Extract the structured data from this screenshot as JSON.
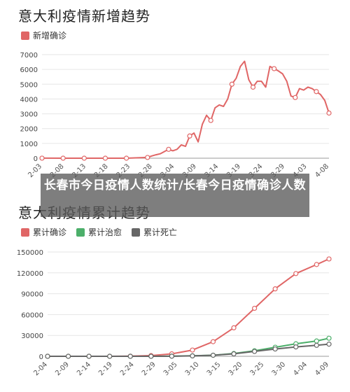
{
  "overlay": {
    "headline": "长春市今日疫情人数统计/长春今日疫情确诊人数"
  },
  "colors": {
    "confirmed": "#e06666",
    "recovered": "#4caf6a",
    "deaths": "#666666",
    "grid": "#e6e6e6"
  },
  "chart_data": [
    {
      "type": "line",
      "title": "意大利疫情新增趋势",
      "legend_position": "top-left",
      "grid": true,
      "ylim": [
        0,
        7000
      ],
      "yticks": [
        0,
        1000,
        2000,
        3000,
        4000,
        5000,
        6000,
        7000
      ],
      "xticks": [
        "2-03",
        "2-08",
        "2-13",
        "2-18",
        "2-23",
        "2-28",
        "3-04",
        "3-09",
        "3-14",
        "3-19",
        "3-24",
        "3-29",
        "4-03",
        "4-08"
      ],
      "series": [
        {
          "name": "新增确诊",
          "color": "#e06666",
          "x": [
            0,
            5,
            10,
            15,
            20,
            25,
            26,
            27,
            28,
            29,
            30,
            31,
            32,
            33,
            34,
            35,
            36,
            37,
            38,
            39,
            40,
            41,
            42,
            43,
            44,
            45,
            46,
            47,
            48,
            49,
            50,
            51,
            52,
            53,
            54,
            55,
            56,
            57,
            58,
            59,
            60,
            61,
            62,
            63,
            64,
            65,
            66,
            67,
            68
          ],
          "values": [
            3,
            0,
            0,
            0,
            0,
            50,
            150,
            230,
            300,
            450,
            600,
            500,
            600,
            900,
            800,
            1500,
            1700,
            1100,
            2300,
            2900,
            2550,
            3400,
            3600,
            3500,
            4000,
            5000,
            5400,
            6200,
            6550,
            5300,
            4800,
            5200,
            5200,
            4800,
            6200,
            6050,
            5900,
            5700,
            5200,
            4200,
            4100,
            4700,
            4600,
            4800,
            4700,
            4500,
            4300,
            3900,
            3050
          ],
          "markers": [
            0,
            5,
            10,
            15,
            20,
            25,
            30,
            35,
            40,
            45,
            50,
            55,
            60,
            65,
            68
          ]
        }
      ]
    },
    {
      "type": "line",
      "title": "意大利疫情累计趋势",
      "legend_position": "top-left",
      "grid": true,
      "ylim": [
        0,
        150000
      ],
      "yticks": [
        0,
        30000,
        60000,
        90000,
        120000,
        150000
      ],
      "xticks": [
        "2-04",
        "2-09",
        "2-14",
        "2-19",
        "2-24",
        "2-29",
        "3-05",
        "3-10",
        "3-15",
        "3-20",
        "3-25",
        "3-30",
        "4-04",
        "4-09"
      ],
      "series": [
        {
          "name": "累计确诊",
          "color": "#e06666",
          "x": [
            0,
            5,
            10,
            15,
            20,
            25,
            30,
            35,
            40,
            45,
            50,
            55,
            60,
            65,
            68
          ],
          "values": [
            0,
            0,
            0,
            0,
            200,
            1000,
            3500,
            9000,
            21000,
            41000,
            69000,
            97000,
            119000,
            132000,
            140000
          ]
        },
        {
          "name": "累计治愈",
          "color": "#4caf6a",
          "x": [
            0,
            5,
            10,
            15,
            20,
            25,
            30,
            35,
            40,
            45,
            50,
            55,
            60,
            65,
            68
          ],
          "values": [
            0,
            0,
            0,
            0,
            0,
            50,
            300,
            700,
            1500,
            4000,
            8000,
            13000,
            18000,
            22000,
            26000
          ]
        },
        {
          "name": "累计死亡",
          "color": "#666666",
          "x": [
            0,
            5,
            10,
            15,
            20,
            25,
            30,
            35,
            40,
            45,
            50,
            55,
            60,
            65,
            68
          ],
          "values": [
            0,
            0,
            0,
            0,
            0,
            30,
            150,
            600,
            1500,
            3500,
            7000,
            10500,
            13500,
            15800,
            17500
          ]
        }
      ]
    }
  ]
}
